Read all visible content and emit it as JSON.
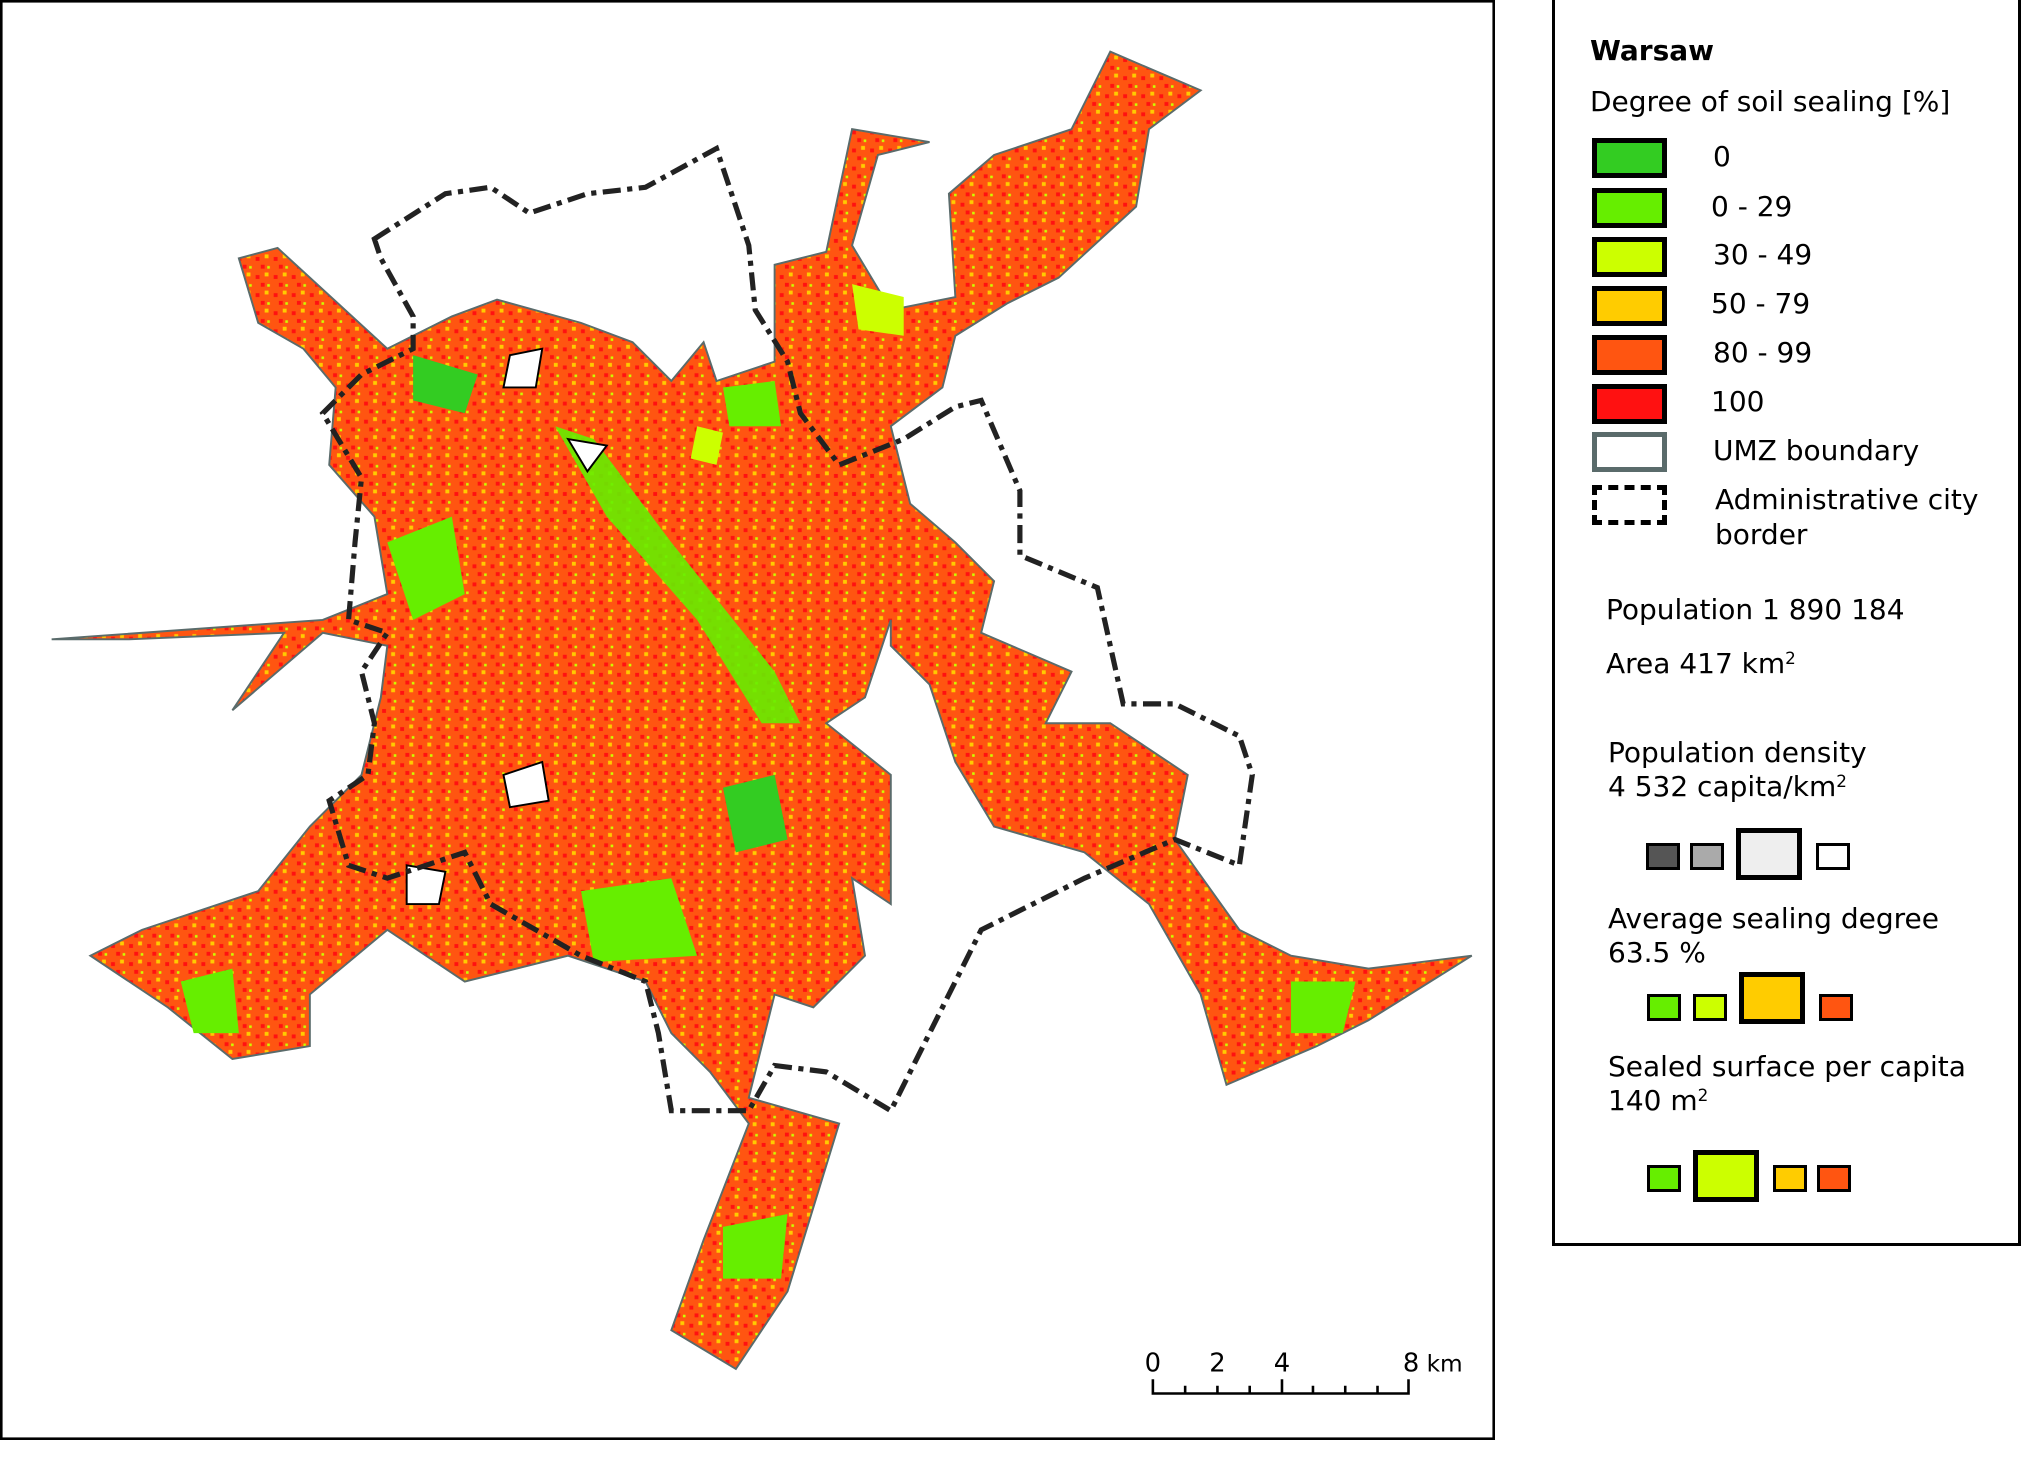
{
  "legend": {
    "title": "Warsaw",
    "sealing_heading": "Degree of soil sealing [%]",
    "classes": [
      {
        "label": "0",
        "color": "#33cc22"
      },
      {
        "label": "0 - 29",
        "color": "#66ee00"
      },
      {
        "label": "30 - 49",
        "color": "#ccff00"
      },
      {
        "label": "50 - 79",
        "color": "#ffcc00"
      },
      {
        "label": "80 - 99",
        "color": "#ff5511"
      },
      {
        "label": "100",
        "color": "#ff1111"
      }
    ],
    "umz_label": "UMZ boundary",
    "umz_color": "#5a6b6b",
    "admin_label_line1": "Administrative city",
    "admin_label_line2": "border"
  },
  "stats": {
    "population": "Population 1 890 184",
    "area_prefix": "Area 417 km",
    "area_sup": "2",
    "density_label": "Population density",
    "density_value": "4 532 capita/km",
    "density_sup": "2",
    "sealing_label": "Average sealing degree",
    "sealing_value": "63.5 %",
    "per_capita_label": "Sealed surface per capita",
    "per_capita_value": "140 m",
    "per_capita_sup": "2",
    "density_rank_highlight": 3,
    "sealing_rank_highlight": 3,
    "per_capita_rank_highlight": 2
  },
  "scale_bar": {
    "ticks": [
      "0",
      "2",
      "4",
      "8"
    ],
    "unit": "km"
  }
}
